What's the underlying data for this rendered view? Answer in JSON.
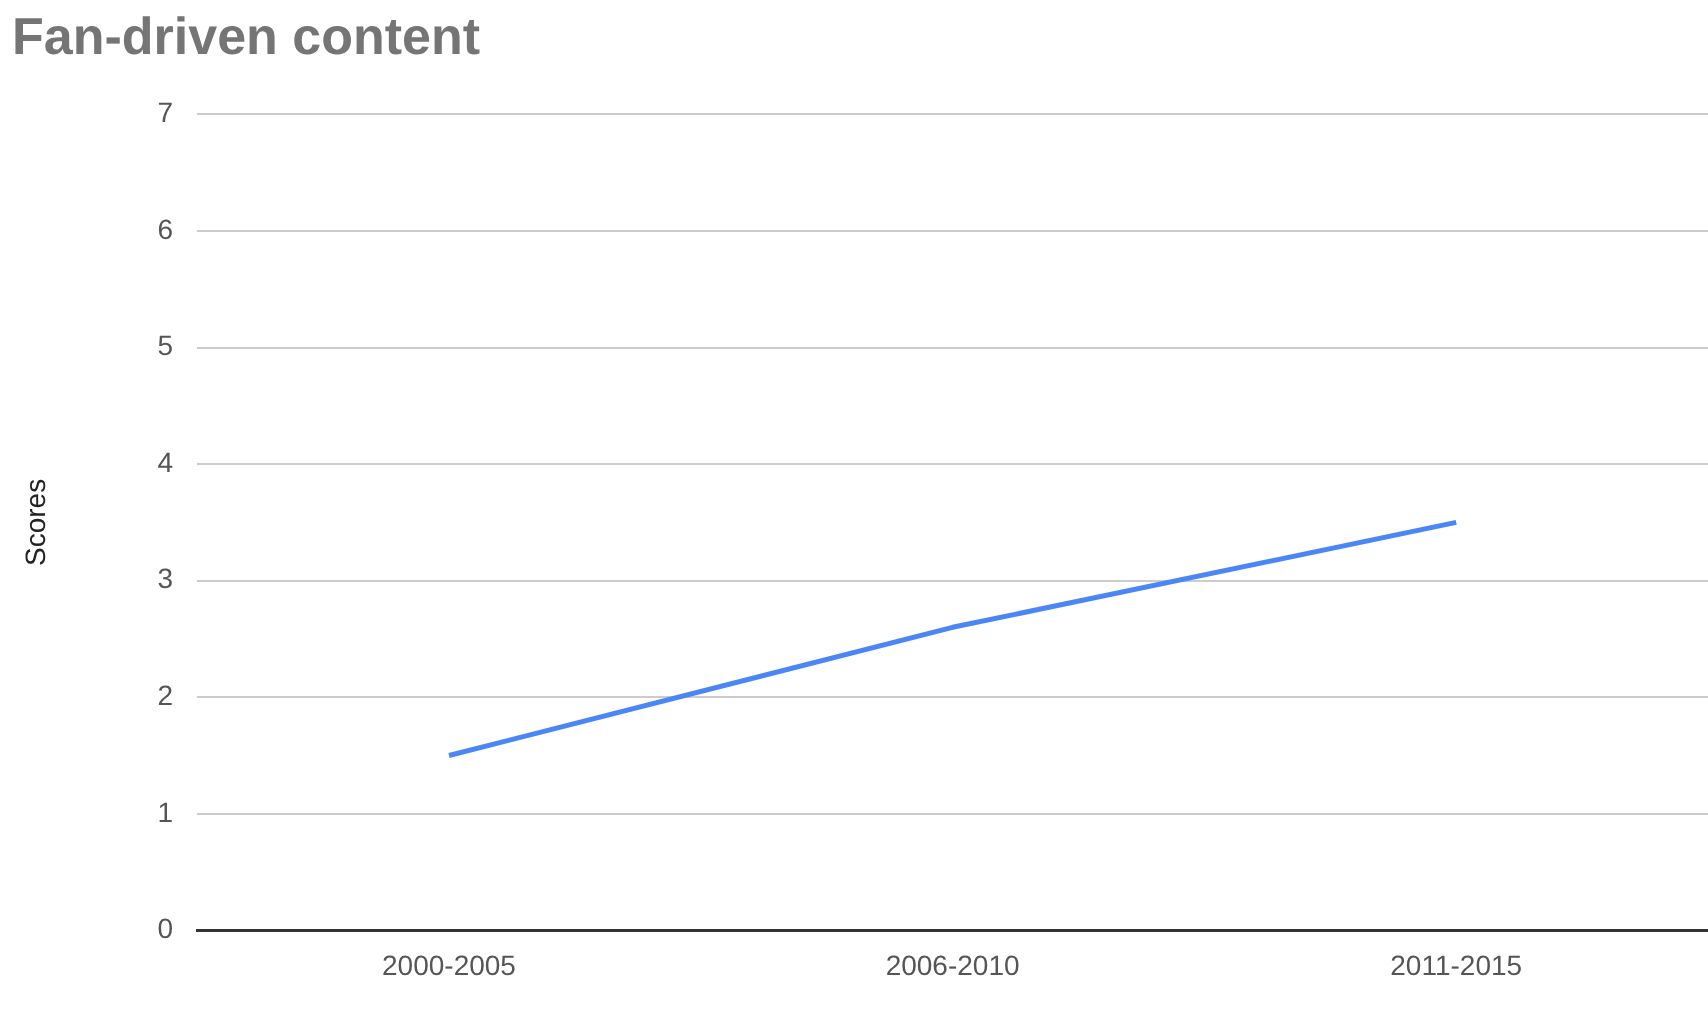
{
  "chart_data": {
    "type": "line",
    "title": "Fan-driven content",
    "ylabel": "Scores",
    "categories": [
      "2000-2005",
      "2006-2010",
      "2011-2015"
    ],
    "series": [
      {
        "color": "#4a86f5",
        "values": [
          1.5,
          2.6,
          3.5
        ]
      }
    ],
    "ylim": [
      0,
      7
    ],
    "yticks": [
      0,
      1,
      2,
      3,
      4,
      5,
      6,
      7
    ],
    "grid": "y",
    "legend": false,
    "marker": "none"
  }
}
